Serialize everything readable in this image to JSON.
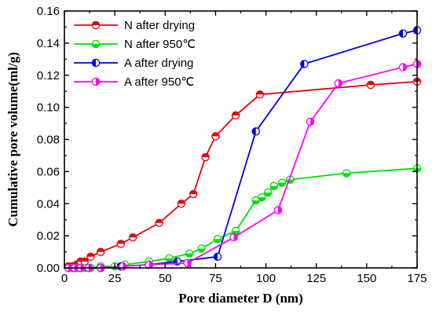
{
  "chart_data": {
    "type": "line",
    "xlabel": "Pore diameter D (nm)",
    "ylabel": "Cumulative pore volume(ml/g)",
    "xlim": [
      0,
      175
    ],
    "ylim": [
      0,
      0.16
    ],
    "xticks": [
      "0",
      "25",
      "50",
      "75",
      "100",
      "125",
      "150",
      "175"
    ],
    "yticks": [
      "0.00",
      "0.02",
      "0.04",
      "0.06",
      "0.08",
      "0.10",
      "0.12",
      "0.14",
      "0.16"
    ],
    "legend_position": "top-left",
    "series": [
      {
        "name": "N after drying",
        "color": "#e8000b",
        "marker": "half-filled-top-circle",
        "x": [
          2,
          4,
          6,
          8,
          10,
          13,
          18,
          28,
          34,
          47,
          58,
          64,
          70,
          75,
          85,
          97,
          152,
          175
        ],
        "y": [
          0.001,
          0.001,
          0.002,
          0.004,
          0.004,
          0.007,
          0.01,
          0.015,
          0.019,
          0.028,
          0.04,
          0.046,
          0.069,
          0.082,
          0.095,
          0.108,
          0.114,
          0.116
        ]
      },
      {
        "name": "N after  950℃",
        "color": "#00e000",
        "marker": "half-filled-bottom-circle",
        "x": [
          2,
          4,
          6,
          8,
          10,
          13,
          18,
          25,
          30,
          42,
          52,
          62,
          68,
          76,
          85,
          95,
          98,
          101,
          104,
          108,
          112,
          140,
          175
        ],
        "y": [
          0.0,
          0.0,
          0.0,
          0.0,
          0.0,
          0.0,
          0.001,
          0.001,
          0.002,
          0.004,
          0.006,
          0.009,
          0.012,
          0.018,
          0.023,
          0.042,
          0.044,
          0.047,
          0.051,
          0.053,
          0.055,
          0.059,
          0.062
        ]
      },
      {
        "name": "A after drying",
        "color": "#0000e0",
        "marker": "half-filled-left-circle",
        "x": [
          2,
          5,
          8,
          12,
          18,
          28,
          42,
          56,
          76,
          95,
          119,
          168,
          175
        ],
        "y": [
          0.0,
          0.0,
          0.0,
          0.0,
          0.0,
          0.001,
          0.002,
          0.004,
          0.007,
          0.085,
          0.127,
          0.146,
          0.148
        ]
      },
      {
        "name": "A after 950℃",
        "color": "#ff00ff",
        "marker": "half-filled-right-circle",
        "x": [
          2,
          5,
          8,
          12,
          18,
          29,
          42,
          61,
          84,
          106,
          122,
          136,
          168,
          175
        ],
        "y": [
          0.0,
          0.0,
          0.0,
          0.0,
          0.0,
          0.001,
          0.002,
          0.003,
          0.019,
          0.036,
          0.091,
          0.115,
          0.125,
          0.127
        ]
      }
    ]
  }
}
